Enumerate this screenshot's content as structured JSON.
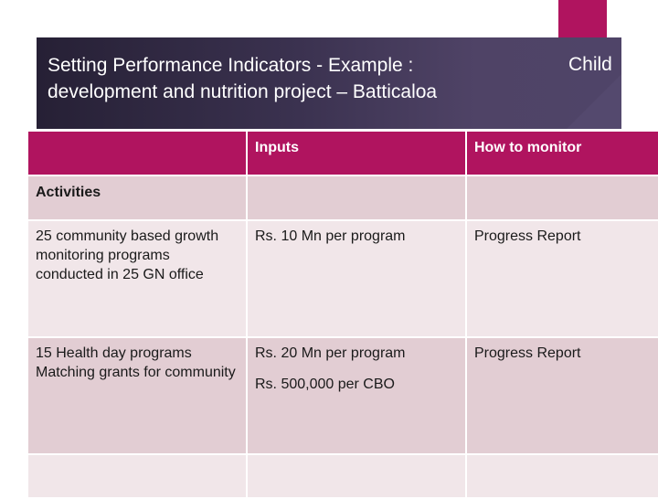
{
  "title": {
    "line1": "Setting Performance Indicators -  Example :",
    "line2": "development and nutrition project – Batticaloa"
  },
  "side_label": "Child",
  "table": {
    "headers": [
      "",
      "Inputs",
      "How to monitor"
    ],
    "section": "Activities",
    "rows": [
      {
        "activity": "25 community based growth monitoring programs conducted in 25 GN office",
        "inputs": [
          "Rs. 10 Mn  per program"
        ],
        "monitor": "Progress Report"
      },
      {
        "activity": "15 Health day programs Matching grants for community",
        "inputs": [
          "Rs. 20 Mn per program",
          "Rs. 500,000 per CBO"
        ],
        "monitor": "Progress Report"
      },
      {
        "activity": "",
        "inputs": [
          ""
        ],
        "monitor": ""
      }
    ]
  },
  "colors": {
    "accent": "#b0145f",
    "title_band": "#3b3250",
    "row_light": "#f1e6e9",
    "row_dark": "#e2cdd3"
  }
}
